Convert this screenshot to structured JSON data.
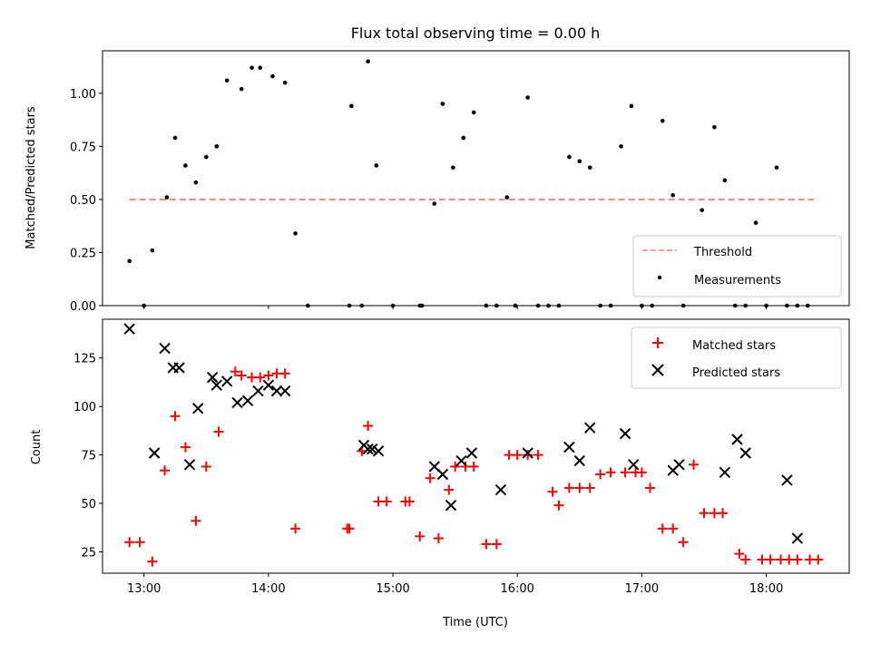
{
  "chart_data": [
    {
      "type": "scatter",
      "title": "Flux total observing time = 0.00 h",
      "xlabel": "",
      "ylabel": "Matched/Predicted stars",
      "x_unit": "time (UTC)",
      "xlim": [
        "12:40",
        "18:40"
      ],
      "ylim": [
        0,
        1.2
      ],
      "yticks": [
        0.0,
        0.25,
        0.5,
        0.75,
        1.0
      ],
      "ytick_labels": [
        "0.00",
        "0.25",
        "0.50",
        "0.75",
        "1.00"
      ],
      "x_tick_labels_shown": false,
      "grid": false,
      "legend_position": "lower right",
      "threshold": {
        "name": "Threshold",
        "value": 0.5,
        "x_range": [
          "12:53",
          "18:23"
        ],
        "color": "#ff7f7f",
        "style": "dashed"
      },
      "series": [
        {
          "name": "Measurements",
          "color": "#000000",
          "marker": "dot",
          "x": [
            "12:53",
            "13:00",
            "13:04",
            "13:11",
            "13:15",
            "13:20",
            "13:25",
            "13:30",
            "13:35",
            "13:40",
            "13:47",
            "13:52",
            "13:56",
            "14:02",
            "14:08",
            "14:13",
            "14:19",
            "14:39",
            "14:40",
            "14:45",
            "14:48",
            "14:52",
            "15:00",
            "15:13",
            "15:14",
            "15:20",
            "15:24",
            "15:29",
            "15:34",
            "15:39",
            "15:45",
            "15:50",
            "15:55",
            "15:59",
            "16:05",
            "16:10",
            "16:15",
            "16:20",
            "16:25",
            "16:30",
            "16:35",
            "16:40",
            "16:45",
            "16:50",
            "16:55",
            "17:00",
            "17:05",
            "17:10",
            "17:15",
            "17:20",
            "17:29",
            "17:35",
            "17:40",
            "17:45",
            "17:50",
            "17:55",
            "18:00",
            "18:05",
            "18:10",
            "18:15",
            "18:20"
          ],
          "y": [
            0.21,
            0.0,
            0.26,
            0.51,
            0.79,
            0.66,
            0.58,
            0.7,
            0.75,
            1.06,
            1.02,
            1.12,
            1.12,
            1.08,
            1.05,
            0.34,
            0.0,
            0.0,
            0.94,
            0.0,
            1.15,
            0.66,
            0.0,
            0.0,
            0.0,
            0.48,
            0.95,
            0.65,
            0.79,
            0.91,
            0.0,
            0.0,
            0.51,
            0.0,
            0.98,
            0.0,
            0.0,
            0.0,
            0.7,
            0.68,
            0.65,
            0.0,
            0.0,
            0.75,
            0.94,
            0.0,
            0.0,
            0.87,
            0.52,
            0.0,
            0.45,
            0.84,
            0.59,
            0.0,
            0.0,
            0.39,
            0.0,
            0.65,
            0.0,
            0.0,
            0.0
          ]
        }
      ]
    },
    {
      "type": "scatter",
      "title": "",
      "xlabel": "Time (UTC)",
      "ylabel": "Count",
      "xlim": [
        "12:40",
        "18:40"
      ],
      "ylim": [
        14,
        145
      ],
      "xticks": [
        "13:00",
        "14:00",
        "15:00",
        "16:00",
        "17:00",
        "18:00"
      ],
      "xtick_labels": [
        "13:00",
        "14:00",
        "15:00",
        "16:00",
        "17:00",
        "18:00"
      ],
      "yticks": [
        25,
        50,
        75,
        100,
        125
      ],
      "ytick_labels": [
        "25",
        "50",
        "75",
        "100",
        "125"
      ],
      "grid": false,
      "legend_position": "upper right",
      "series": [
        {
          "name": "Matched stars",
          "color": "#ff0000",
          "marker": "plus",
          "x": [
            "12:53",
            "12:58",
            "13:04",
            "13:10",
            "13:15",
            "13:20",
            "13:25",
            "13:30",
            "13:36",
            "13:44",
            "13:47",
            "13:52",
            "13:56",
            "14:00",
            "14:04",
            "14:08",
            "14:13",
            "14:38",
            "14:39",
            "14:45",
            "14:48",
            "14:53",
            "14:57",
            "15:06",
            "15:08",
            "15:13",
            "15:18",
            "15:22",
            "15:27",
            "15:30",
            "15:35",
            "15:39",
            "15:45",
            "15:50",
            "15:56",
            "16:00",
            "16:05",
            "16:10",
            "16:17",
            "16:20",
            "16:25",
            "16:30",
            "16:35",
            "16:40",
            "16:45",
            "16:52",
            "16:57",
            "17:00",
            "17:04",
            "17:10",
            "17:15",
            "17:20",
            "17:25",
            "17:30",
            "17:35",
            "17:39",
            "17:47",
            "17:50",
            "17:58",
            "18:02",
            "18:07",
            "18:11",
            "18:15",
            "18:21",
            "18:25"
          ],
          "y": [
            30,
            30,
            20,
            67,
            95,
            79,
            41,
            69,
            87,
            118,
            116,
            115,
            115,
            116,
            117,
            117,
            37,
            37,
            37,
            77,
            90,
            51,
            51,
            51,
            51,
            33,
            63,
            32,
            57,
            69,
            69,
            69,
            29,
            29,
            75,
            75,
            75,
            75,
            56,
            49,
            58,
            58,
            58,
            65,
            66,
            66,
            66,
            66,
            58,
            37,
            37,
            30,
            70,
            45,
            45,
            45,
            24,
            21,
            21,
            21,
            21,
            21,
            21,
            21,
            21
          ]
        },
        {
          "name": "Predicted stars",
          "color": "#000000",
          "marker": "x",
          "x": [
            "12:53",
            "13:05",
            "13:10",
            "13:14",
            "13:17",
            "13:22",
            "13:26",
            "13:33",
            "13:35",
            "13:40",
            "13:45",
            "13:50",
            "13:55",
            "14:00",
            "14:04",
            "14:08",
            "14:46",
            "14:48",
            "14:50",
            "14:53",
            "15:20",
            "15:24",
            "15:28",
            "15:33",
            "15:38",
            "15:52",
            "16:05",
            "16:25",
            "16:30",
            "16:35",
            "16:52",
            "16:56",
            "17:15",
            "17:18",
            "17:40",
            "17:46",
            "17:50",
            "18:10",
            "18:15"
          ],
          "y": [
            140,
            76,
            130,
            120,
            120,
            70,
            99,
            115,
            111,
            113,
            102,
            103,
            108,
            111,
            108,
            108,
            80,
            78,
            78,
            77,
            69,
            65,
            49,
            72,
            76,
            57,
            76,
            79,
            72,
            89,
            86,
            70,
            67,
            70,
            66,
            83,
            76,
            62,
            32
          ]
        }
      ]
    }
  ],
  "legend_top": [
    {
      "label": "Threshold",
      "key": "threshold"
    },
    {
      "label": "Measurements",
      "key": "measurements"
    }
  ],
  "legend_bottom": [
    {
      "label": "Matched stars",
      "key": "matched"
    },
    {
      "label": "Predicted stars",
      "key": "predicted"
    }
  ]
}
